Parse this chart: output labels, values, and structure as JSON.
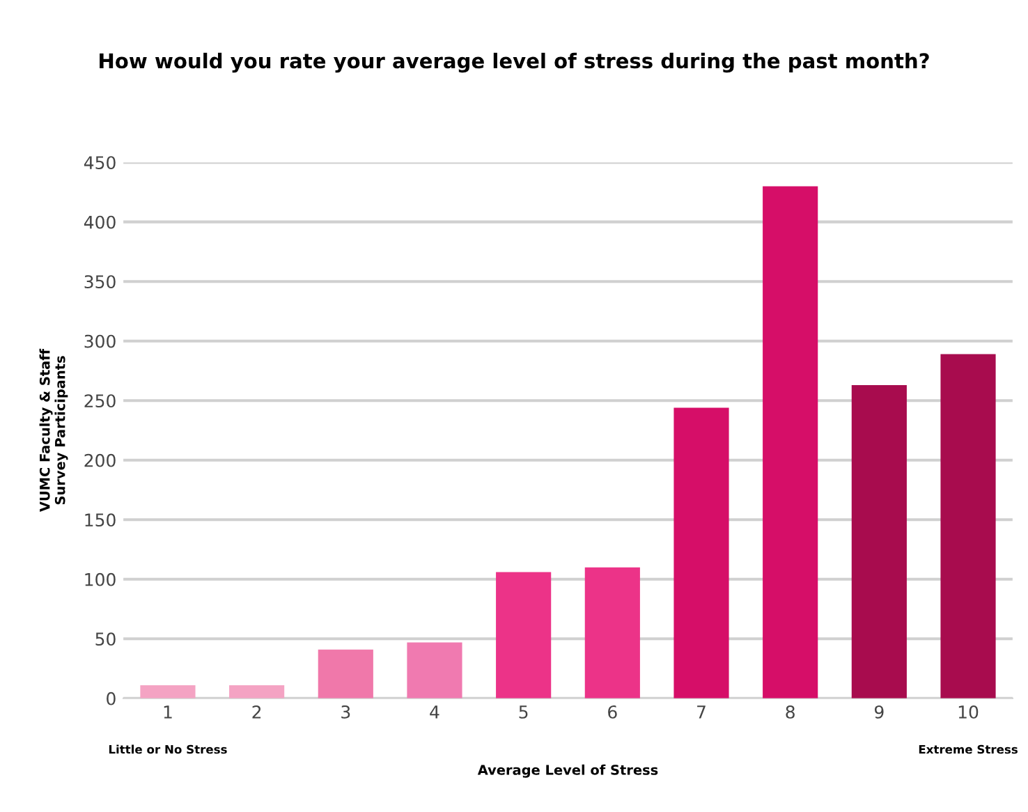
{
  "chart_data": {
    "type": "bar",
    "title": "How would you rate your average level of stress during the past month?",
    "xlabel": "Average Level of Stress",
    "ylabel": "VUMC Faculty & Staff\nSurvey Participants",
    "categories": [
      "1",
      "2",
      "3",
      "4",
      "5",
      "6",
      "7",
      "8",
      "9",
      "10"
    ],
    "values": [
      11,
      11,
      41,
      47,
      106,
      110,
      244,
      430,
      263,
      289
    ],
    "colors": [
      "#f4a3c3",
      "#f4a3c3",
      "#f078aa",
      "#f07ab0",
      "#ec3388",
      "#ec3388",
      "#d60e68",
      "#d60e68",
      "#a80c4e",
      "#a80c4e"
    ],
    "annotations": [
      "Little or No Stress",
      "Extreme Stress"
    ],
    "ylim": [
      0,
      450
    ],
    "yticks": [
      0,
      50,
      100,
      150,
      200,
      250,
      300,
      350,
      400,
      450
    ],
    "grid": "y",
    "legend": false
  }
}
